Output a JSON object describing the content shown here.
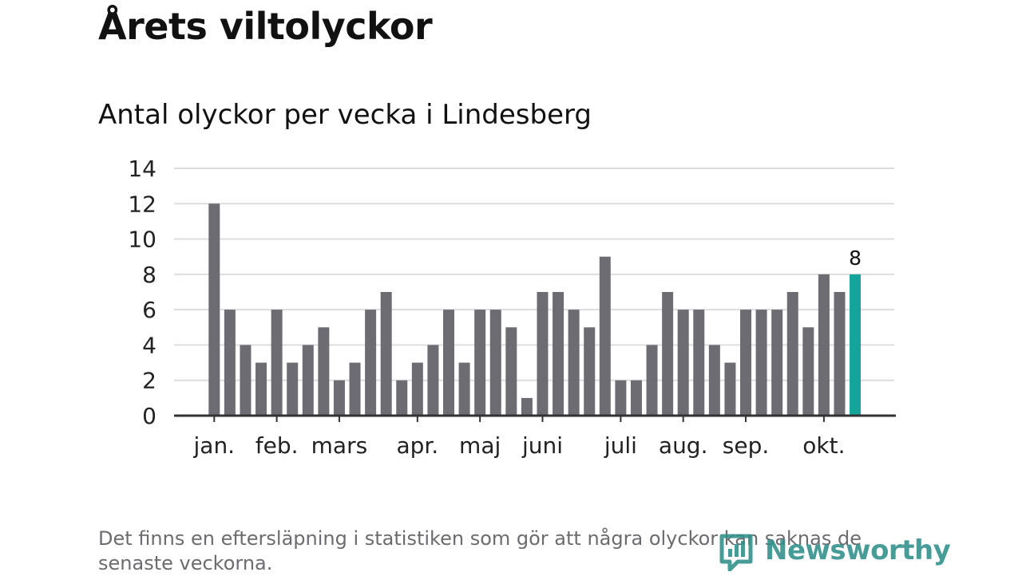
{
  "title": "Årets viltolyckor",
  "subtitle": "Antal olyckor per vecka i Lindesberg",
  "note": "Det finns en eftersläpning i statistiken som gör att några olyckor kan saknas de senaste veckorna.",
  "brand": {
    "name": "Newsworthy",
    "color": "#2f8f8a"
  },
  "colors": {
    "bar": "#6d6c72",
    "highlight": "#13a59a",
    "grid": "#dddddd",
    "axis": "#333333"
  },
  "chart_data": {
    "type": "bar",
    "title": "Antal olyckor per vecka i Lindesberg",
    "xlabel": "",
    "ylabel": "",
    "ylim": [
      0,
      14
    ],
    "yticks": [
      0,
      2,
      4,
      6,
      8,
      10,
      12,
      14
    ],
    "grid": true,
    "values": [
      12,
      6,
      4,
      3,
      6,
      3,
      4,
      5,
      2,
      3,
      6,
      7,
      2,
      3,
      4,
      6,
      3,
      6,
      6,
      5,
      1,
      7,
      7,
      6,
      5,
      9,
      2,
      2,
      4,
      7,
      6,
      6,
      4,
      3,
      6,
      6,
      6,
      7,
      5,
      8,
      7,
      8
    ],
    "highlight_index": 41,
    "highlight_label": "8",
    "months": [
      {
        "label": "jan.",
        "week": 0
      },
      {
        "label": "feb.",
        "week": 4
      },
      {
        "label": "mars",
        "week": 8
      },
      {
        "label": "apr.",
        "week": 13
      },
      {
        "label": "maj",
        "week": 17
      },
      {
        "label": "juni",
        "week": 21
      },
      {
        "label": "juli",
        "week": 26
      },
      {
        "label": "aug.",
        "week": 30
      },
      {
        "label": "sep.",
        "week": 34
      },
      {
        "label": "okt.",
        "week": 39
      }
    ]
  }
}
